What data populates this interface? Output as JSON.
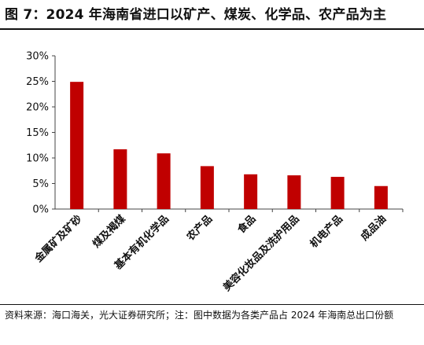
{
  "figure": {
    "title": "图 7：2024 年海南省进口以矿产、煤炭、化学品、农产品为主",
    "source_note": "资料来源：海口海关，光大证券研究所；注：图中数据为各类产品占 2024 年海南总出口份额"
  },
  "chart_data": {
    "type": "bar",
    "title": "",
    "xlabel": "",
    "ylabel": "",
    "categories": [
      "金属矿及矿砂",
      "煤及褐煤",
      "基本有机化学品",
      "农产品",
      "食品",
      "美容化妆品及洗护用品",
      "机电产品",
      "成品油"
    ],
    "values": [
      24.9,
      11.7,
      10.9,
      8.4,
      6.8,
      6.6,
      6.3,
      4.5
    ],
    "ylim": [
      0,
      30
    ],
    "yticks": [
      "0%",
      "5%",
      "10%",
      "15%",
      "20%",
      "25%",
      "30%"
    ],
    "ytick_values": [
      0,
      5,
      10,
      15,
      20,
      25,
      30
    ],
    "grid": false,
    "legend": "none",
    "bar_color": "#C00000"
  }
}
